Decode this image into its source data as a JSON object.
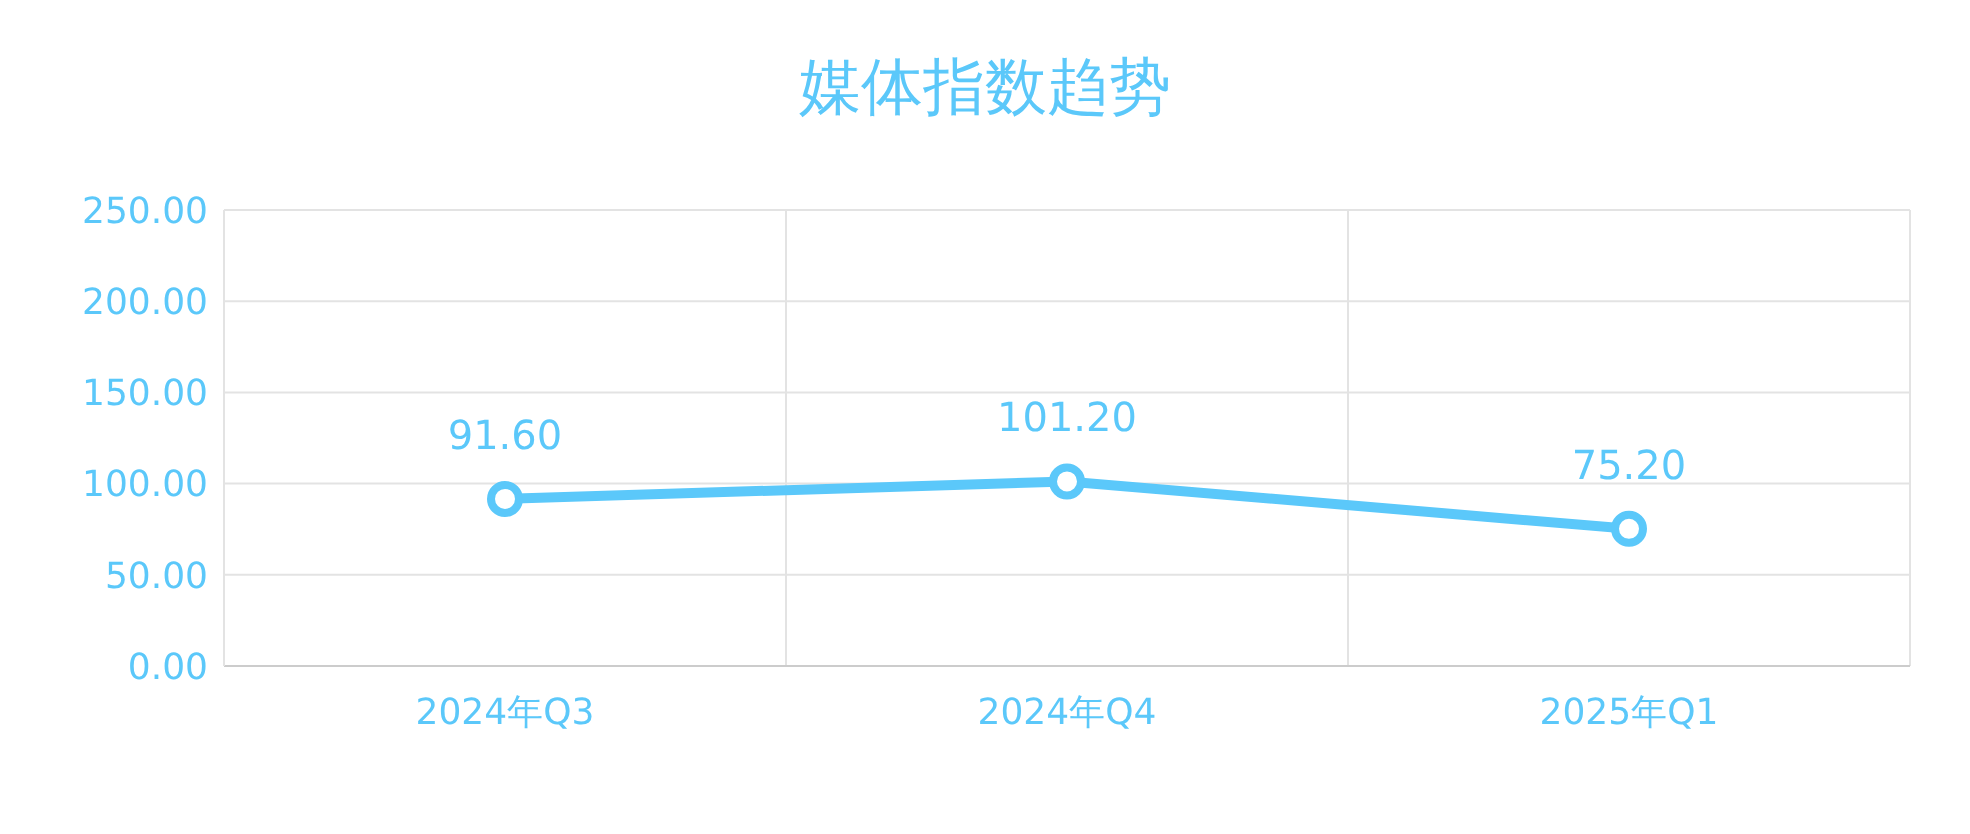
{
  "chart_data": {
    "type": "line",
    "title": "媒体指数趋势",
    "categories": [
      "2024年Q3",
      "2024年Q4",
      "2025年Q1"
    ],
    "series": [
      {
        "color": "#5bc8fa",
        "values": [
          91.6,
          101.2,
          75.2
        ],
        "value_labels": [
          "91.60",
          "101.20",
          "75.20"
        ]
      }
    ],
    "ylim": [
      0,
      250
    ],
    "yticks": [
      {
        "value": 0,
        "label": "0.00"
      },
      {
        "value": 50,
        "label": "50.00"
      },
      {
        "value": 100,
        "label": "100.00"
      },
      {
        "value": 150,
        "label": "150.00"
      },
      {
        "value": 200,
        "label": "200.00"
      },
      {
        "value": 250,
        "label": "250.00"
      }
    ],
    "grid": true,
    "marker": "circle",
    "line_style": "solid",
    "legend": false
  }
}
